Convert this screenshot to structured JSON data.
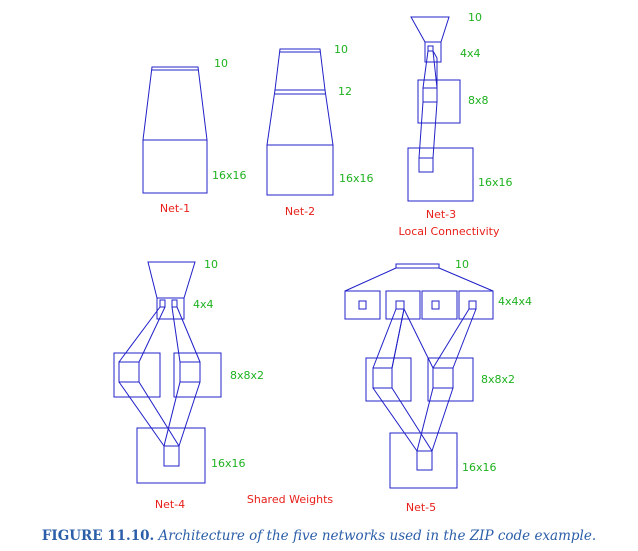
{
  "networks": [
    {
      "name": "Net-1",
      "subtitle": "",
      "labels": [
        "10",
        "16x16"
      ]
    },
    {
      "name": "Net-2",
      "subtitle": "",
      "labels": [
        "10",
        "12",
        "16x16"
      ]
    },
    {
      "name": "Net-3",
      "subtitle": "Local Connectivity",
      "labels": [
        "10",
        "4x4",
        "8x8",
        "16x16"
      ]
    },
    {
      "name": "Net-4",
      "subtitle": "",
      "labels": [
        "10",
        "4x4",
        "8x8x2",
        "16x16"
      ]
    },
    {
      "name": "Net-5",
      "subtitle": "",
      "labels": [
        "10",
        "4x4x4",
        "8x8x2",
        "16x16"
      ]
    }
  ],
  "annotations": {
    "shared_weights": "Shared Weights"
  },
  "caption": {
    "figure": "FIGURE 11.10.",
    "text": "Architecture of the five networks used in the ZIP code example."
  },
  "colors": {
    "lines": "#2020c8",
    "layer_labels": "#1fb21f",
    "net_labels": "#e8201a",
    "caption": "#2b5ea8"
  }
}
